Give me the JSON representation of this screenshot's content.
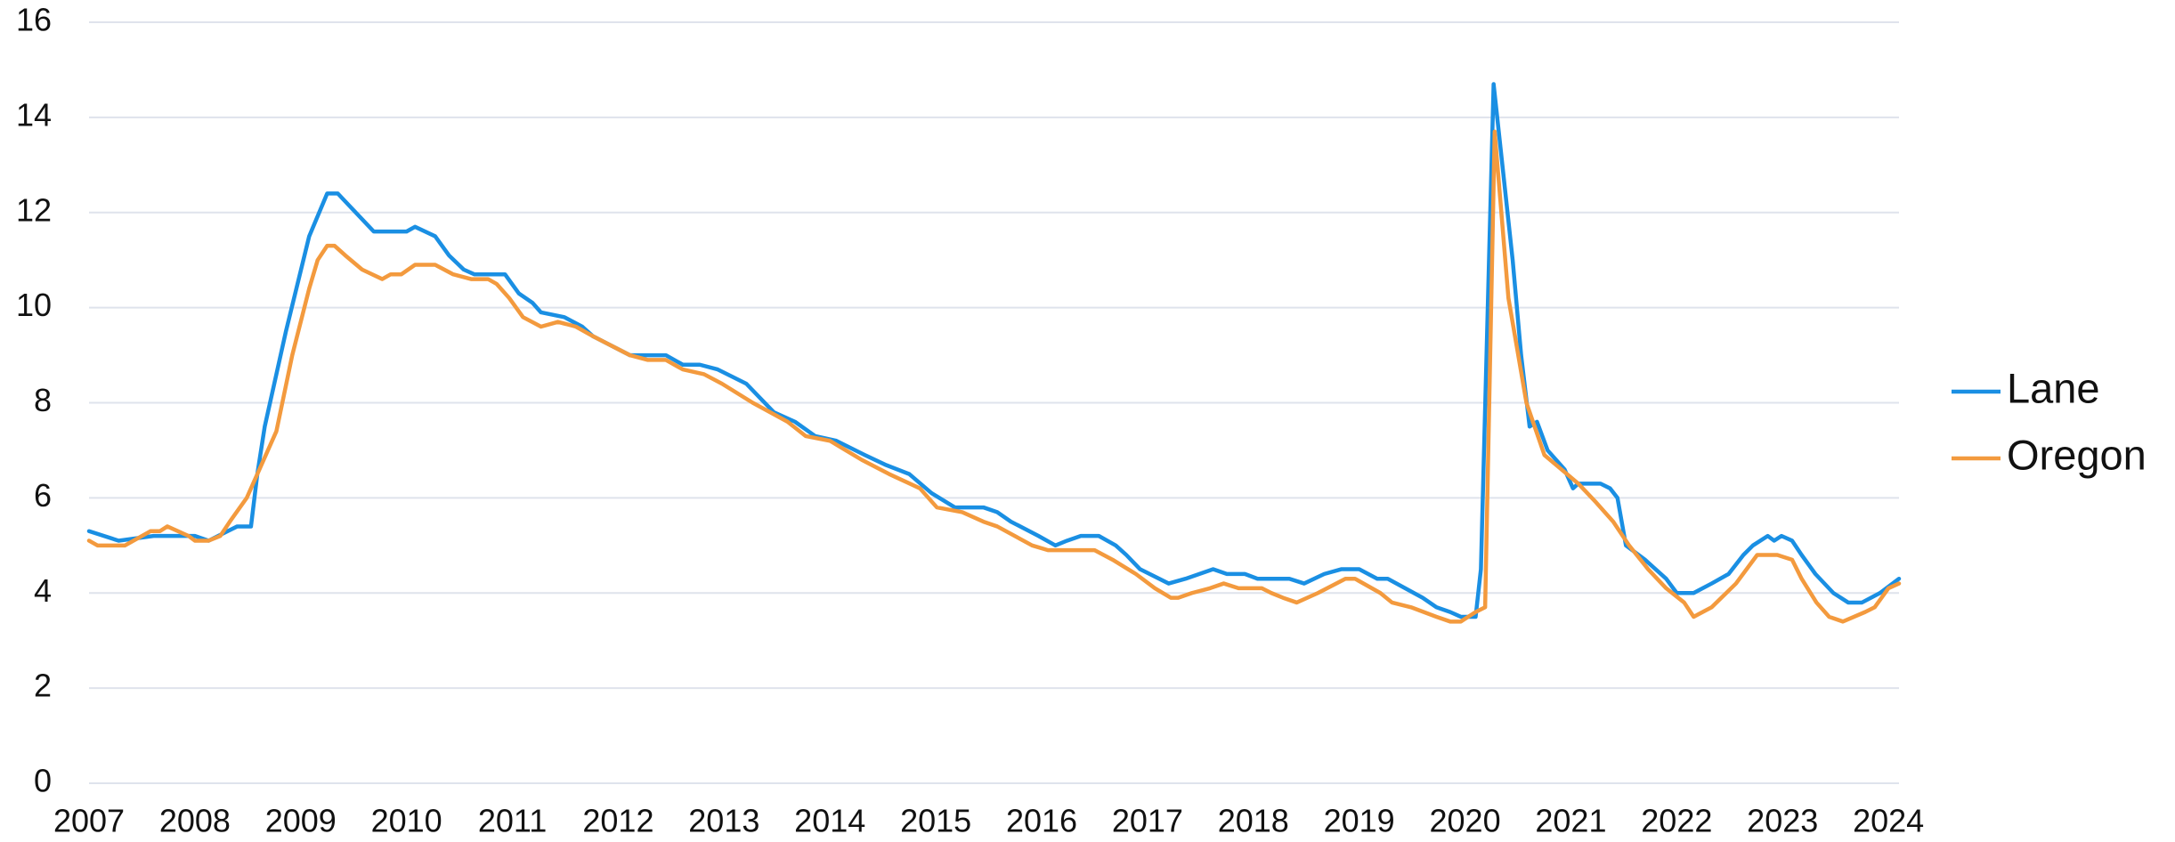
{
  "chart_data": {
    "type": "line",
    "xlim": [
      2007,
      2024.1
    ],
    "xticks": [
      2007,
      2008,
      2009,
      2010,
      2011,
      2012,
      2013,
      2014,
      2015,
      2016,
      2017,
      2018,
      2019,
      2020,
      2021,
      2022,
      2023,
      2024
    ],
    "ylim": [
      0,
      16
    ],
    "yticks": [
      0,
      2,
      4,
      6,
      8,
      10,
      12,
      14,
      16
    ],
    "grid": true,
    "legend": "right",
    "series": [
      {
        "name": "Lane",
        "color": "#1a8fe3",
        "x": [
          2007.0,
          2007.28,
          2007.61,
          2008.0,
          2008.13,
          2008.4,
          2008.53,
          2008.59,
          2008.66,
          2008.86,
          2009.08,
          2009.25,
          2009.35,
          2009.69,
          2010.0,
          2010.08,
          2010.27,
          2010.4,
          2010.54,
          2010.64,
          2010.93,
          2011.06,
          2011.19,
          2011.27,
          2011.49,
          2011.66,
          2011.76,
          2012.11,
          2012.45,
          2012.61,
          2012.77,
          2012.94,
          2013.21,
          2013.34,
          2013.47,
          2013.67,
          2013.86,
          2014.06,
          2014.33,
          2014.52,
          2014.75,
          2014.96,
          2015.18,
          2015.45,
          2015.58,
          2015.71,
          2015.97,
          2016.13,
          2016.24,
          2016.37,
          2016.54,
          2016.7,
          2016.8,
          2016.93,
          2017.2,
          2017.36,
          2017.49,
          2017.62,
          2017.75,
          2017.92,
          2018.04,
          2018.34,
          2018.48,
          2018.67,
          2018.83,
          2019.0,
          2019.17,
          2019.27,
          2019.6,
          2019.73,
          2019.86,
          2019.96,
          2020.1,
          2020.15,
          2020.27,
          2020.45,
          2020.53,
          2020.61,
          2020.68,
          2020.78,
          2020.94,
          2021.02,
          2021.07,
          2021.28,
          2021.37,
          2021.44,
          2021.52,
          2021.7,
          2021.9,
          2022.0,
          2022.16,
          2022.33,
          2022.49,
          2022.63,
          2022.72,
          2022.86,
          2022.92,
          2022.99,
          2023.09,
          2023.18,
          2023.31,
          2023.48,
          2023.62,
          2023.75,
          2023.92,
          2024.1
        ],
        "values": [
          5.3,
          5.1,
          5.2,
          5.2,
          5.1,
          5.4,
          5.4,
          6.5,
          7.5,
          9.5,
          11.5,
          12.4,
          12.4,
          11.6,
          11.6,
          11.7,
          11.5,
          11.1,
          10.8,
          10.7,
          10.7,
          10.3,
          10.1,
          9.9,
          9.8,
          9.6,
          9.4,
          9.0,
          9.0,
          8.8,
          8.8,
          8.7,
          8.4,
          8.1,
          7.8,
          7.6,
          7.3,
          7.2,
          6.9,
          6.7,
          6.5,
          6.1,
          5.8,
          5.8,
          5.7,
          5.5,
          5.2,
          5.0,
          5.1,
          5.2,
          5.2,
          5.0,
          4.8,
          4.5,
          4.2,
          4.3,
          4.4,
          4.5,
          4.4,
          4.4,
          4.3,
          4.3,
          4.2,
          4.4,
          4.5,
          4.5,
          4.3,
          4.3,
          3.9,
          3.7,
          3.6,
          3.5,
          3.5,
          4.5,
          14.7,
          11.0,
          9.0,
          7.5,
          7.6,
          7.0,
          6.6,
          6.2,
          6.3,
          6.3,
          6.2,
          6.0,
          5.0,
          4.7,
          4.3,
          4.0,
          4.0,
          4.2,
          4.4,
          4.8,
          5.0,
          5.2,
          5.1,
          5.2,
          5.1,
          4.8,
          4.4,
          4.0,
          3.8,
          3.8,
          4.0,
          4.3
        ]
      },
      {
        "name": "Oregon",
        "color": "#f39a3e",
        "x": [
          2007.0,
          2007.08,
          2007.34,
          2007.58,
          2007.67,
          2007.74,
          2007.94,
          2008.0,
          2008.13,
          2008.24,
          2008.33,
          2008.49,
          2008.59,
          2008.77,
          2008.92,
          2009.08,
          2009.16,
          2009.25,
          2009.32,
          2009.42,
          2009.58,
          2009.77,
          2009.85,
          2009.95,
          2010.08,
          2010.27,
          2010.44,
          2010.61,
          2010.77,
          2010.85,
          2010.97,
          2011.1,
          2011.27,
          2011.43,
          2011.6,
          2011.76,
          2012.11,
          2012.28,
          2012.45,
          2012.61,
          2012.81,
          2012.98,
          2013.27,
          2013.6,
          2013.77,
          2014.0,
          2014.3,
          2014.56,
          2014.85,
          2015.01,
          2015.25,
          2015.45,
          2015.58,
          2015.91,
          2016.06,
          2016.5,
          2016.67,
          2016.89,
          2017.07,
          2017.22,
          2017.29,
          2017.42,
          2017.59,
          2017.72,
          2017.86,
          2018.08,
          2018.17,
          2018.28,
          2018.41,
          2018.61,
          2018.87,
          2018.96,
          2019.2,
          2019.31,
          2019.49,
          2019.73,
          2019.86,
          2019.96,
          2020.1,
          2020.19,
          2020.28,
          2020.41,
          2020.58,
          2020.75,
          2020.91,
          2021.07,
          2021.24,
          2021.4,
          2021.55,
          2021.73,
          2021.9,
          2022.07,
          2022.16,
          2022.33,
          2022.56,
          2022.76,
          2022.95,
          2023.09,
          2023.18,
          2023.32,
          2023.44,
          2023.57,
          2023.78,
          2023.87,
          2024.0,
          2024.1
        ],
        "values": [
          5.1,
          5.0,
          5.0,
          5.3,
          5.3,
          5.4,
          5.2,
          5.1,
          5.1,
          5.2,
          5.5,
          6.0,
          6.5,
          7.4,
          9.0,
          10.4,
          11.0,
          11.3,
          11.3,
          11.1,
          10.8,
          10.6,
          10.7,
          10.7,
          10.9,
          10.9,
          10.7,
          10.6,
          10.6,
          10.5,
          10.2,
          9.8,
          9.6,
          9.7,
          9.6,
          9.4,
          9.0,
          8.9,
          8.9,
          8.7,
          8.6,
          8.4,
          8.0,
          7.6,
          7.3,
          7.2,
          6.8,
          6.5,
          6.2,
          5.8,
          5.7,
          5.5,
          5.4,
          5.0,
          4.9,
          4.9,
          4.7,
          4.4,
          4.1,
          3.9,
          3.9,
          4.0,
          4.1,
          4.2,
          4.1,
          4.1,
          4.0,
          3.9,
          3.8,
          4.0,
          4.3,
          4.3,
          4.0,
          3.8,
          3.7,
          3.5,
          3.4,
          3.4,
          3.6,
          3.7,
          13.7,
          10.2,
          8.0,
          6.9,
          6.6,
          6.3,
          5.9,
          5.5,
          5.0,
          4.5,
          4.1,
          3.8,
          3.5,
          3.7,
          4.2,
          4.8,
          4.8,
          4.7,
          4.3,
          3.8,
          3.5,
          3.4,
          3.6,
          3.7,
          4.1,
          4.2
        ]
      }
    ]
  }
}
